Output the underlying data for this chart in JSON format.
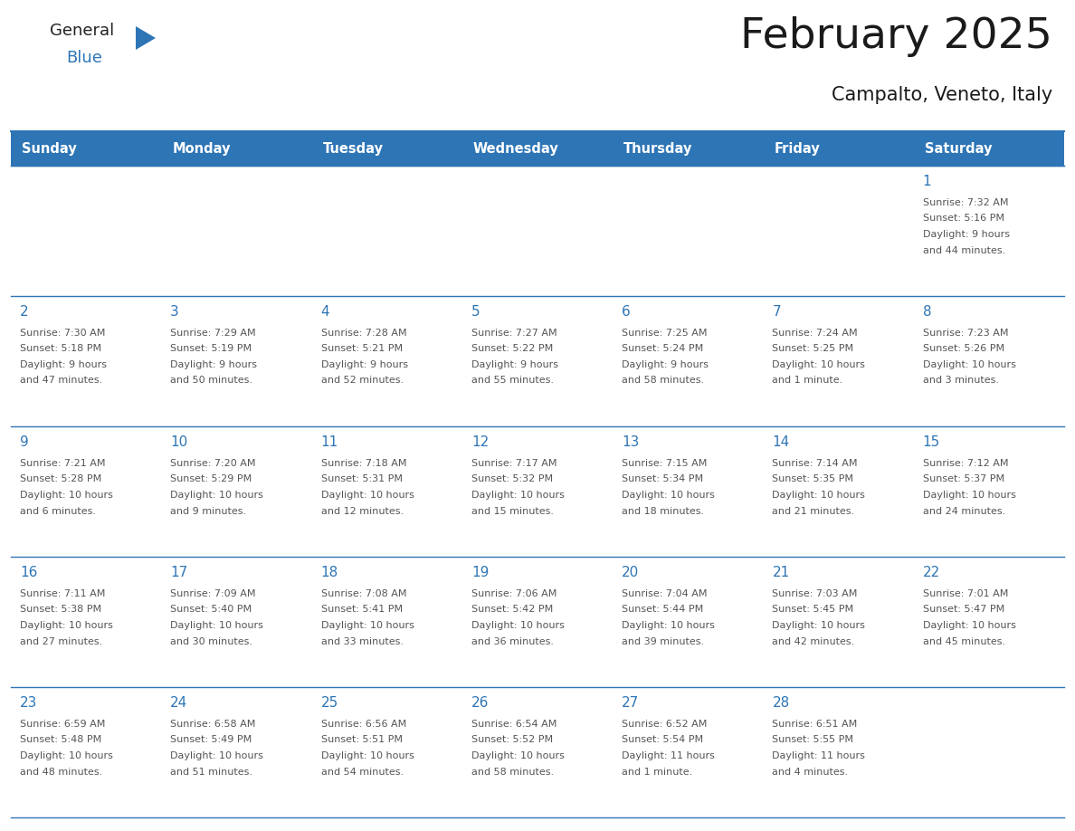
{
  "title": "February 2025",
  "subtitle": "Campalto, Veneto, Italy",
  "header_bg": "#2E75B6",
  "header_text_color": "#FFFFFF",
  "cell_border_color": "#2E75B6",
  "day_number_color": "#2E75B6",
  "info_text_color": "#555555",
  "bg_color": "#FFFFFF",
  "days_of_week": [
    "Sunday",
    "Monday",
    "Tuesday",
    "Wednesday",
    "Thursday",
    "Friday",
    "Saturday"
  ],
  "weeks": [
    [
      {
        "day": null,
        "sunrise": null,
        "sunset": null,
        "daylight": null
      },
      {
        "day": null,
        "sunrise": null,
        "sunset": null,
        "daylight": null
      },
      {
        "day": null,
        "sunrise": null,
        "sunset": null,
        "daylight": null
      },
      {
        "day": null,
        "sunrise": null,
        "sunset": null,
        "daylight": null
      },
      {
        "day": null,
        "sunrise": null,
        "sunset": null,
        "daylight": null
      },
      {
        "day": null,
        "sunrise": null,
        "sunset": null,
        "daylight": null
      },
      {
        "day": 1,
        "sunrise": "7:32 AM",
        "sunset": "5:16 PM",
        "daylight": "9 hours and 44 minutes."
      }
    ],
    [
      {
        "day": 2,
        "sunrise": "7:30 AM",
        "sunset": "5:18 PM",
        "daylight": "9 hours and 47 minutes."
      },
      {
        "day": 3,
        "sunrise": "7:29 AM",
        "sunset": "5:19 PM",
        "daylight": "9 hours and 50 minutes."
      },
      {
        "day": 4,
        "sunrise": "7:28 AM",
        "sunset": "5:21 PM",
        "daylight": "9 hours and 52 minutes."
      },
      {
        "day": 5,
        "sunrise": "7:27 AM",
        "sunset": "5:22 PM",
        "daylight": "9 hours and 55 minutes."
      },
      {
        "day": 6,
        "sunrise": "7:25 AM",
        "sunset": "5:24 PM",
        "daylight": "9 hours and 58 minutes."
      },
      {
        "day": 7,
        "sunrise": "7:24 AM",
        "sunset": "5:25 PM",
        "daylight": "10 hours and 1 minute."
      },
      {
        "day": 8,
        "sunrise": "7:23 AM",
        "sunset": "5:26 PM",
        "daylight": "10 hours and 3 minutes."
      }
    ],
    [
      {
        "day": 9,
        "sunrise": "7:21 AM",
        "sunset": "5:28 PM",
        "daylight": "10 hours and 6 minutes."
      },
      {
        "day": 10,
        "sunrise": "7:20 AM",
        "sunset": "5:29 PM",
        "daylight": "10 hours and 9 minutes."
      },
      {
        "day": 11,
        "sunrise": "7:18 AM",
        "sunset": "5:31 PM",
        "daylight": "10 hours and 12 minutes."
      },
      {
        "day": 12,
        "sunrise": "7:17 AM",
        "sunset": "5:32 PM",
        "daylight": "10 hours and 15 minutes."
      },
      {
        "day": 13,
        "sunrise": "7:15 AM",
        "sunset": "5:34 PM",
        "daylight": "10 hours and 18 minutes."
      },
      {
        "day": 14,
        "sunrise": "7:14 AM",
        "sunset": "5:35 PM",
        "daylight": "10 hours and 21 minutes."
      },
      {
        "day": 15,
        "sunrise": "7:12 AM",
        "sunset": "5:37 PM",
        "daylight": "10 hours and 24 minutes."
      }
    ],
    [
      {
        "day": 16,
        "sunrise": "7:11 AM",
        "sunset": "5:38 PM",
        "daylight": "10 hours and 27 minutes."
      },
      {
        "day": 17,
        "sunrise": "7:09 AM",
        "sunset": "5:40 PM",
        "daylight": "10 hours and 30 minutes."
      },
      {
        "day": 18,
        "sunrise": "7:08 AM",
        "sunset": "5:41 PM",
        "daylight": "10 hours and 33 minutes."
      },
      {
        "day": 19,
        "sunrise": "7:06 AM",
        "sunset": "5:42 PM",
        "daylight": "10 hours and 36 minutes."
      },
      {
        "day": 20,
        "sunrise": "7:04 AM",
        "sunset": "5:44 PM",
        "daylight": "10 hours and 39 minutes."
      },
      {
        "day": 21,
        "sunrise": "7:03 AM",
        "sunset": "5:45 PM",
        "daylight": "10 hours and 42 minutes."
      },
      {
        "day": 22,
        "sunrise": "7:01 AM",
        "sunset": "5:47 PM",
        "daylight": "10 hours and 45 minutes."
      }
    ],
    [
      {
        "day": 23,
        "sunrise": "6:59 AM",
        "sunset": "5:48 PM",
        "daylight": "10 hours and 48 minutes."
      },
      {
        "day": 24,
        "sunrise": "6:58 AM",
        "sunset": "5:49 PM",
        "daylight": "10 hours and 51 minutes."
      },
      {
        "day": 25,
        "sunrise": "6:56 AM",
        "sunset": "5:51 PM",
        "daylight": "10 hours and 54 minutes."
      },
      {
        "day": 26,
        "sunrise": "6:54 AM",
        "sunset": "5:52 PM",
        "daylight": "10 hours and 58 minutes."
      },
      {
        "day": 27,
        "sunrise": "6:52 AM",
        "sunset": "5:54 PM",
        "daylight": "11 hours and 1 minute."
      },
      {
        "day": 28,
        "sunrise": "6:51 AM",
        "sunset": "5:55 PM",
        "daylight": "11 hours and 4 minutes."
      },
      {
        "day": null,
        "sunrise": null,
        "sunset": null,
        "daylight": null
      }
    ]
  ]
}
